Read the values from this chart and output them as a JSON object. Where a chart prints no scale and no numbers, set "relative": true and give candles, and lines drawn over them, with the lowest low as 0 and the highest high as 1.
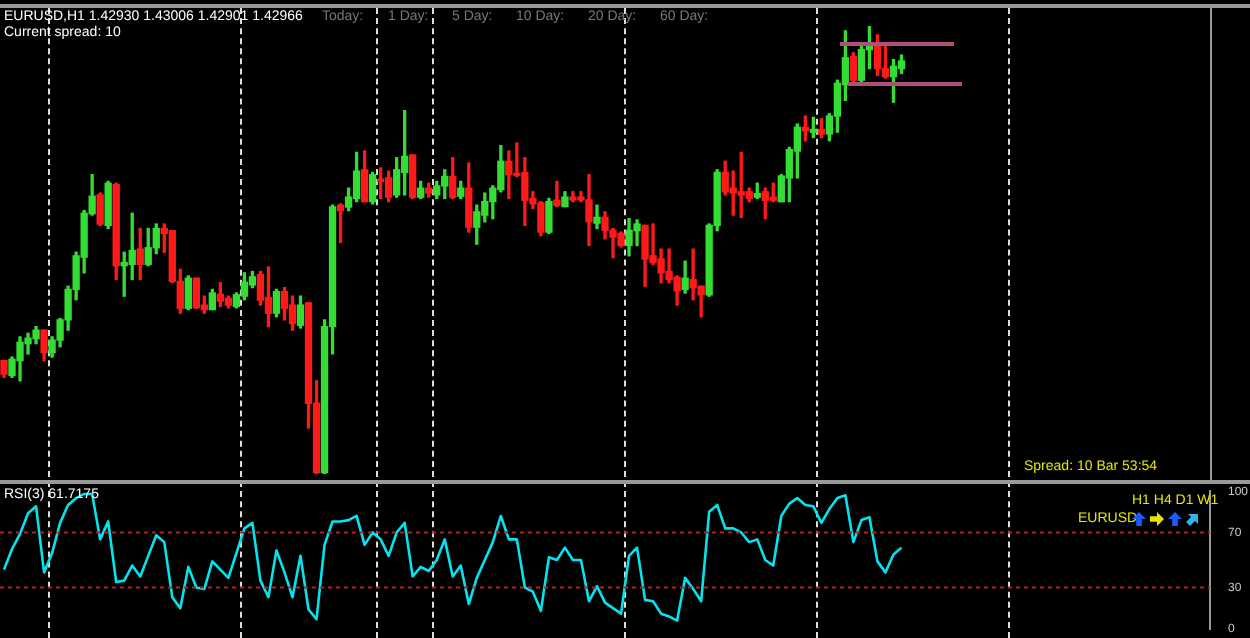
{
  "chart_data": [
    {
      "type": "candlestick",
      "title": "EURUSD,H1  1.42930 1.43006 1.42901 1.42966",
      "subtitle": "Current spread: 10",
      "relative": true,
      "tick_labels": false,
      "annotations": [
        "Today:",
        "1 Day:",
        "5 Day:",
        "10 Day:",
        "20 Day:",
        "60 Day:",
        "Spread: 10   Bar 53:54"
      ],
      "categories": [
        null,
        null,
        null,
        null,
        null,
        null,
        null,
        null,
        null,
        null,
        null,
        null,
        null,
        null,
        null,
        null,
        null,
        null,
        null,
        null,
        null,
        null,
        null,
        null,
        null,
        null,
        null,
        null,
        null,
        null,
        null,
        null,
        null,
        null,
        null,
        null,
        null,
        null,
        null,
        null,
        null,
        null,
        null,
        null,
        null,
        null,
        null,
        null,
        null,
        null,
        null,
        null,
        null,
        null,
        null,
        null,
        null,
        null,
        null,
        null,
        null,
        null,
        null,
        null,
        null,
        null,
        null,
        null,
        null,
        null,
        null,
        null,
        null,
        null,
        null,
        null,
        null,
        null,
        null,
        null,
        null,
        null,
        null,
        null,
        null,
        null,
        null,
        null,
        null,
        null,
        null,
        null,
        null,
        null,
        null,
        null,
        null,
        null,
        null,
        null,
        null,
        null,
        null,
        null,
        null,
        null,
        null,
        null,
        null,
        null,
        null,
        null,
        null
      ],
      "ohlc": [
        [
          0.253,
          0.253,
          0.216,
          0.223
        ],
        [
          0.22,
          0.261,
          0.216,
          0.256
        ],
        [
          0.253,
          0.306,
          0.208,
          0.294
        ],
        [
          0.291,
          0.314,
          0.268,
          0.303
        ],
        [
          0.302,
          0.329,
          0.291,
          0.321
        ],
        [
          0.321,
          0.321,
          0.253,
          0.271
        ],
        [
          0.271,
          0.306,
          0.261,
          0.299
        ],
        [
          0.299,
          0.347,
          0.284,
          0.344
        ],
        [
          0.344,
          0.419,
          0.321,
          0.412
        ],
        [
          0.412,
          0.495,
          0.389,
          0.487
        ],
        [
          0.484,
          0.588,
          0.449,
          0.582
        ],
        [
          0.581,
          0.668,
          0.578,
          0.62
        ],
        [
          0.623,
          0.627,
          0.555,
          0.558
        ],
        [
          0.555,
          0.653,
          0.548,
          0.649
        ],
        [
          0.646,
          0.649,
          0.434,
          0.465
        ],
        [
          0.465,
          0.495,
          0.397,
          0.472
        ],
        [
          0.468,
          0.582,
          0.434,
          0.499
        ],
        [
          0.502,
          0.548,
          0.434,
          0.468
        ],
        [
          0.468,
          0.548,
          0.465,
          0.505
        ],
        [
          0.505,
          0.558,
          0.492,
          0.548
        ],
        [
          0.548,
          0.558,
          0.495,
          0.537
        ],
        [
          0.543,
          0.543,
          0.427,
          0.43
        ],
        [
          0.43,
          0.457,
          0.359,
          0.37
        ],
        [
          0.37,
          0.442,
          0.367,
          0.437
        ],
        [
          0.437,
          0.437,
          0.37,
          0.371
        ],
        [
          0.377,
          0.397,
          0.359,
          0.367
        ],
        [
          0.367,
          0.412,
          0.367,
          0.404
        ],
        [
          0.401,
          0.427,
          0.374,
          0.386
        ],
        [
          0.392,
          0.397,
          0.371,
          0.377
        ],
        [
          0.374,
          0.404,
          0.371,
          0.4
        ],
        [
          0.397,
          0.449,
          0.389,
          0.428
        ],
        [
          0.422,
          0.452,
          0.416,
          0.44
        ],
        [
          0.445,
          0.452,
          0.377,
          0.388
        ],
        [
          0.394,
          0.462,
          0.329,
          0.359
        ],
        [
          0.359,
          0.412,
          0.351,
          0.407
        ],
        [
          0.407,
          0.416,
          0.344,
          0.37
        ],
        [
          0.377,
          0.397,
          0.321,
          0.336
        ],
        [
          0.332,
          0.397,
          0.326,
          0.377
        ],
        [
          0.382,
          0.382,
          0.103,
          0.158
        ],
        [
          0.158,
          0.208,
          0,
          0.003
        ],
        [
          0.003,
          0.344,
          0,
          0.329
        ],
        [
          0.329,
          0.6,
          0.268,
          0.596
        ],
        [
          0.6,
          0.603,
          0.517,
          0.588
        ],
        [
          0.596,
          0.638,
          0.588,
          0.618
        ],
        [
          0.615,
          0.718,
          0.608,
          0.676
        ],
        [
          0.679,
          0.721,
          0.608,
          0.608
        ],
        [
          0.608,
          0.673,
          0.603,
          0.668
        ],
        [
          0.658,
          0.683,
          0.615,
          0.653
        ],
        [
          0.661,
          0.676,
          0.608,
          0.618
        ],
        [
          0.623,
          0.706,
          0.618,
          0.679
        ],
        [
          0.673,
          0.811,
          0.623,
          0.709
        ],
        [
          0.712,
          0.712,
          0.615,
          0.618
        ],
        [
          0.618,
          0.653,
          0.615,
          0.638
        ],
        [
          0.638,
          0.649,
          0.618,
          0.627
        ],
        [
          0.623,
          0.653,
          0.615,
          0.643
        ],
        [
          0.643,
          0.679,
          0.615,
          0.664
        ],
        [
          0.664,
          0.706,
          0.615,
          0.618
        ],
        [
          0.62,
          0.653,
          0.615,
          0.638
        ],
        [
          0.638,
          0.694,
          0.54,
          0.551
        ],
        [
          0.551,
          0.6,
          0.513,
          0.585
        ],
        [
          0.578,
          0.627,
          0.563,
          0.608
        ],
        [
          0.608,
          0.643,
          0.57,
          0.638
        ],
        [
          0.635,
          0.733,
          0.63,
          0.698
        ],
        [
          0.698,
          0.721,
          0.615,
          0.668
        ],
        [
          0.671,
          0.739,
          0.664,
          0.667
        ],
        [
          0.673,
          0.706,
          0.555,
          0.611
        ],
        [
          0.615,
          0.63,
          0.593,
          0.603
        ],
        [
          0.605,
          0.608,
          0.532,
          0.54
        ],
        [
          0.54,
          0.615,
          0.537,
          0.608
        ],
        [
          0.611,
          0.653,
          0.597,
          0.6
        ],
        [
          0.597,
          0.63,
          0.597,
          0.618
        ],
        [
          0.618,
          0.63,
          0.608,
          0.612
        ],
        [
          0.618,
          0.63,
          0.608,
          0.612
        ],
        [
          0.612,
          0.668,
          0.51,
          0.563
        ],
        [
          0.56,
          0.6,
          0.548,
          0.573
        ],
        [
          0.573,
          0.585,
          0.525,
          0.544
        ],
        [
          0.544,
          0.548,
          0.483,
          0.529
        ],
        [
          0.537,
          0.54,
          0.507,
          0.51
        ],
        [
          0.51,
          0.57,
          0.487,
          0.544
        ],
        [
          0.543,
          0.567,
          0.51,
          0.558
        ],
        [
          0.555,
          0.555,
          0.419,
          0.48
        ],
        [
          0.487,
          0.558,
          0.468,
          0.472
        ],
        [
          0.48,
          0.502,
          0.427,
          0.449
        ],
        [
          0.452,
          0.502,
          0.427,
          0.434
        ],
        [
          0.439,
          0.442,
          0.377,
          0.409
        ],
        [
          0.412,
          0.475,
          0.404,
          0.437
        ],
        [
          0.434,
          0.502,
          0.389,
          0.416
        ],
        [
          0.419,
          0.419,
          0.351,
          0.4
        ],
        [
          0.4,
          0.558,
          0.397,
          0.555
        ],
        [
          0.555,
          0.679,
          0.543,
          0.673
        ],
        [
          0.673,
          0.698,
          0.623,
          0.63
        ],
        [
          0.638,
          0.676,
          0.578,
          0.627
        ],
        [
          0.63,
          0.718,
          0.573,
          0.623
        ],
        [
          0.63,
          0.638,
          0.608,
          0.615
        ],
        [
          0.618,
          0.649,
          0.615,
          0.626
        ],
        [
          0.63,
          0.638,
          0.57,
          0.611
        ],
        [
          0.618,
          0.649,
          0.608,
          0.611
        ],
        [
          0.608,
          0.668,
          0.608,
          0.665
        ],
        [
          0.661,
          0.729,
          0.608,
          0.724
        ],
        [
          0.721,
          0.781,
          0.661,
          0.774
        ],
        [
          0.774,
          0.799,
          0.744,
          0.766
        ],
        [
          0.763,
          0.796,
          0.751,
          0.769
        ],
        [
          0.769,
          0.793,
          0.751,
          0.759
        ],
        [
          0.759,
          0.804,
          0.744,
          0.799
        ],
        [
          0.799,
          0.879,
          0.763,
          0.872
        ],
        [
          0.869,
          0.989,
          0.834,
          0.929
        ],
        [
          0.932,
          0.94,
          0.872,
          0.879
        ],
        [
          0.879,
          0.962,
          0.876,
          0.947
        ],
        [
          0.947,
          1,
          0.905,
          0.959
        ],
        [
          0.959,
          0.98,
          0.89,
          0.905
        ],
        [
          0.905,
          0.959,
          0.884,
          0.887
        ],
        [
          0.887,
          0.925,
          0.83,
          0.91
        ],
        [
          0.905,
          0.935,
          0.894,
          0.922
        ]
      ]
    },
    {
      "type": "line",
      "title": "RSI(3) 61.7175",
      "tick_labels": "y",
      "ylim": [
        0,
        100
      ],
      "yticks": [
        0,
        30,
        70,
        100
      ],
      "annotations": [
        "H1   H4   D1   W1",
        "EURUSD"
      ],
      "ref_lines": [
        {
          "axis": "y",
          "value": 70,
          "color": "#b22222",
          "line_style": "dotted"
        },
        {
          "axis": "y",
          "value": 30,
          "color": "#b22222",
          "line_style": "dotted"
        }
      ],
      "categories": [
        null,
        null,
        null,
        null,
        null,
        null,
        null,
        null,
        null,
        null,
        null,
        null,
        null,
        null,
        null,
        null,
        null,
        null,
        null,
        null,
        null,
        null,
        null,
        null,
        null,
        null,
        null,
        null,
        null,
        null,
        null,
        null,
        null,
        null,
        null,
        null,
        null,
        null,
        null,
        null,
        null,
        null,
        null,
        null,
        null,
        null,
        null,
        null,
        null,
        null,
        null,
        null,
        null,
        null,
        null,
        null,
        null,
        null,
        null,
        null,
        null,
        null,
        null,
        null,
        null,
        null,
        null,
        null,
        null,
        null,
        null,
        null,
        null,
        null,
        null,
        null,
        null,
        null,
        null,
        null,
        null,
        null,
        null,
        null,
        null,
        null,
        null,
        null,
        null,
        null,
        null,
        null,
        null,
        null,
        null,
        null,
        null,
        null,
        null,
        null,
        null,
        null,
        null,
        null,
        null,
        null,
        null,
        null,
        null,
        null,
        null,
        null,
        null
      ],
      "series": [
        {
          "color": "#00e5ee",
          "values": [
            43,
            58,
            69,
            84,
            89,
            41,
            55,
            77,
            90,
            95,
            98,
            98,
            65,
            78,
            34,
            35,
            46,
            38,
            53,
            68,
            63,
            23,
            15,
            45,
            30,
            29,
            49,
            43,
            37,
            55,
            73,
            77,
            35,
            23,
            57,
            41,
            23,
            53,
            14,
            7,
            61,
            78,
            78,
            79,
            82,
            61,
            70,
            65,
            53,
            70,
            77,
            38,
            45,
            42,
            50,
            65,
            38,
            46,
            18,
            37,
            50,
            63,
            82,
            65,
            65,
            30,
            27,
            13,
            52,
            50,
            59,
            50,
            50,
            20,
            31,
            19,
            15,
            11,
            53,
            59,
            21,
            20,
            11,
            9,
            6,
            37,
            29,
            20,
            85,
            90,
            73,
            73,
            70,
            63,
            65,
            50,
            46,
            82,
            91,
            95,
            90,
            89,
            77,
            87,
            95,
            97,
            63,
            79,
            81,
            49,
            41,
            54,
            59
          ]
        }
      ]
    }
  ]
}
